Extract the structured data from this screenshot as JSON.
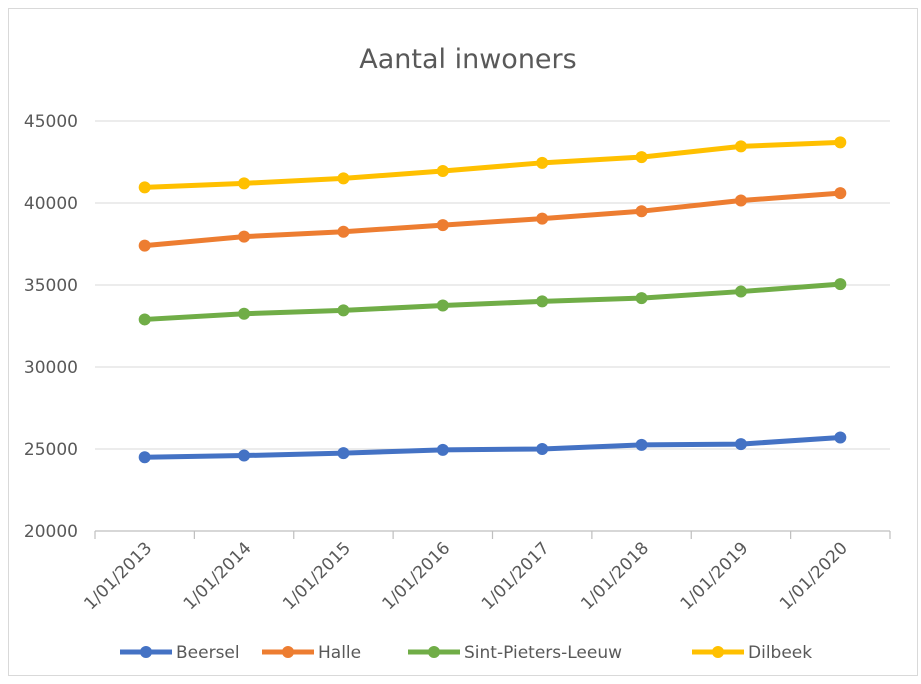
{
  "chart_data": {
    "type": "line",
    "title": "Aantal inwoners",
    "xlabel": "",
    "ylabel": "",
    "categories": [
      "1/01/2013",
      "1/01/2014",
      "1/01/2015",
      "1/01/2016",
      "1/01/2017",
      "1/01/2018",
      "1/01/2019",
      "1/01/2020"
    ],
    "yticks": [
      "20000",
      "25000",
      "30000",
      "35000",
      "40000",
      "45000"
    ],
    "ylim": [
      20000,
      45000
    ],
    "grid": true,
    "legend": "bottom",
    "series": [
      {
        "name": "Beersel",
        "color": "#4472C4",
        "values": [
          24500,
          24600,
          24750,
          24950,
          25000,
          25250,
          25300,
          25700
        ]
      },
      {
        "name": "Halle",
        "color": "#ED7D31",
        "values": [
          37400,
          37950,
          38250,
          38650,
          39050,
          39500,
          40150,
          40600
        ]
      },
      {
        "name": "Sint-Pieters-Leeuw",
        "color": "#70AD47",
        "values": [
          32900,
          33250,
          33450,
          33750,
          34000,
          34200,
          34600,
          35050
        ]
      },
      {
        "name": "Dilbeek",
        "color": "#FFC000",
        "values": [
          40950,
          41200,
          41500,
          41950,
          42450,
          42800,
          43450,
          43700
        ]
      }
    ]
  }
}
